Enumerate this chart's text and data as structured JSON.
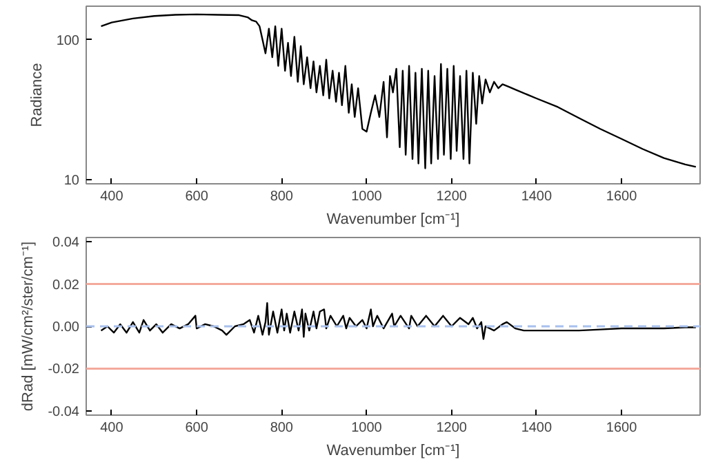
{
  "chart_data": [
    {
      "type": "line",
      "xlabel": "Wavenumber [cm⁻¹]",
      "ylabel": "Radiance",
      "log": "y",
      "xlim": [
        340,
        1785
      ],
      "ylim": [
        9.3,
        174
      ],
      "xticks": [
        400,
        600,
        800,
        1000,
        1200,
        1400,
        1600
      ],
      "yticks": [
        10,
        100
      ],
      "grid": false,
      "series": [
        {
          "color": "#000000",
          "x": [
            375,
            400,
            450,
            500,
            550,
            600,
            650,
            700,
            720,
            730,
            740,
            748,
            755,
            762,
            770,
            778,
            785,
            792,
            800,
            808,
            815,
            822,
            830,
            838,
            845,
            852,
            860,
            868,
            875,
            882,
            890,
            898,
            905,
            912,
            920,
            928,
            935,
            942,
            950,
            958,
            965,
            972,
            980,
            990,
            1000,
            1010,
            1020,
            1030,
            1040,
            1048,
            1055,
            1062,
            1070,
            1078,
            1085,
            1092,
            1100,
            1108,
            1115,
            1122,
            1130,
            1138,
            1145,
            1152,
            1160,
            1168,
            1175,
            1182,
            1190,
            1198,
            1205,
            1212,
            1220,
            1228,
            1235,
            1242,
            1250,
            1258,
            1265,
            1272,
            1280,
            1290,
            1300,
            1310,
            1320,
            1335,
            1350,
            1400,
            1450,
            1500,
            1550,
            1600,
            1650,
            1700,
            1750,
            1775
          ],
          "values": [
            125,
            133,
            142,
            148,
            151,
            152,
            151,
            150,
            145,
            138,
            135,
            125,
            100,
            80,
            120,
            75,
            125,
            65,
            120,
            60,
            95,
            55,
            105,
            50,
            90,
            48,
            75,
            45,
            70,
            42,
            65,
            40,
            72,
            38,
            60,
            36,
            58,
            34,
            65,
            30,
            48,
            28,
            45,
            23,
            22,
            30,
            40,
            28,
            50,
            20,
            55,
            42,
            62,
            17,
            60,
            15,
            65,
            14,
            58,
            13,
            62,
            12,
            60,
            13,
            55,
            14,
            67,
            15,
            62,
            14,
            65,
            16,
            55,
            14,
            60,
            13,
            58,
            25,
            55,
            35,
            52,
            42,
            50,
            45,
            48,
            46,
            44,
            38,
            33,
            27.5,
            23,
            19.5,
            16.5,
            14.2,
            12.8,
            12.3
          ]
        }
      ]
    },
    {
      "type": "line",
      "xlabel": "Wavenumber [cm⁻¹]",
      "ylabel": "dRad [mW/cm²/ster/cm⁻¹]",
      "xlim": [
        340,
        1785
      ],
      "ylim": [
        -0.042,
        0.042
      ],
      "xticks": [
        400,
        600,
        800,
        1000,
        1200,
        1400,
        1600
      ],
      "yticks": [
        {
          "value": -0.04,
          "label": "-0.04"
        },
        {
          "value": -0.02,
          "label": "-0.02"
        },
        {
          "value": 0,
          "label": "0.00"
        },
        {
          "value": 0.02,
          "label": "0.02"
        },
        {
          "value": 0.04,
          "label": "0.04"
        }
      ],
      "grid": false,
      "ref_lines": [
        {
          "axis": "y",
          "value": 0.02,
          "color": "#f4a99c",
          "line_style": "solid"
        },
        {
          "axis": "y",
          "value": -0.02,
          "color": "#f4a99c",
          "line_style": "solid"
        },
        {
          "axis": "y",
          "value": 0,
          "color": "#a8c0ec",
          "line_style": "dashed"
        }
      ],
      "series": [
        {
          "color": "#000000",
          "x": [
            375,
            390,
            405,
            420,
            435,
            450,
            465,
            475,
            490,
            505,
            520,
            540,
            560,
            580,
            597,
            600,
            620,
            640,
            660,
            670,
            690,
            710,
            725,
            735,
            745,
            755,
            762,
            766,
            770,
            780,
            790,
            800,
            806,
            812,
            820,
            830,
            840,
            848,
            852,
            856,
            865,
            875,
            882,
            890,
            900,
            905,
            915,
            930,
            945,
            952,
            960,
            975,
            990,
            1000,
            1010,
            1015,
            1025,
            1040,
            1060,
            1065,
            1080,
            1100,
            1105,
            1120,
            1140,
            1160,
            1180,
            1200,
            1220,
            1240,
            1250,
            1260,
            1270,
            1275,
            1280,
            1300,
            1320,
            1330,
            1350,
            1370,
            1400,
            1450,
            1500,
            1550,
            1600,
            1650,
            1700,
            1750,
            1775
          ],
          "values": [
            -0.002,
            0,
            -0.003,
            0.001,
            -0.003,
            0.002,
            -0.003,
            0.003,
            -0.002,
            0.001,
            -0.003,
            0.001,
            -0.001,
            0.001,
            0.005,
            -0.001,
            0.001,
            0,
            -0.002,
            -0.004,
            0,
            0.001,
            0.003,
            -0.003,
            0.005,
            -0.004,
            0.002,
            0.011,
            -0.004,
            0.007,
            -0.003,
            0.008,
            -0.002,
            0.006,
            -0.003,
            0.007,
            -0.002,
            0.008,
            -0.005,
            0.006,
            -0.002,
            0.007,
            -0.001,
            0.007,
            0.008,
            -0.001,
            0.005,
            0,
            0.005,
            -0.001,
            0.004,
            0,
            0.003,
            -0.001,
            0.008,
            0,
            0.005,
            -0.001,
            0.006,
            0,
            0.005,
            -0.001,
            0.005,
            0,
            0.005,
            0,
            0.005,
            0,
            0.004,
            0.001,
            0.004,
            -0.001,
            0.002,
            -0.006,
            0,
            -0.002,
            0.001,
            0.002,
            -0.001,
            -0.002,
            -0.002,
            -0.002,
            -0.002,
            -0.0015,
            -0.001,
            -0.001,
            -0.001,
            -0.0005,
            -0.0005
          ]
        }
      ]
    }
  ]
}
